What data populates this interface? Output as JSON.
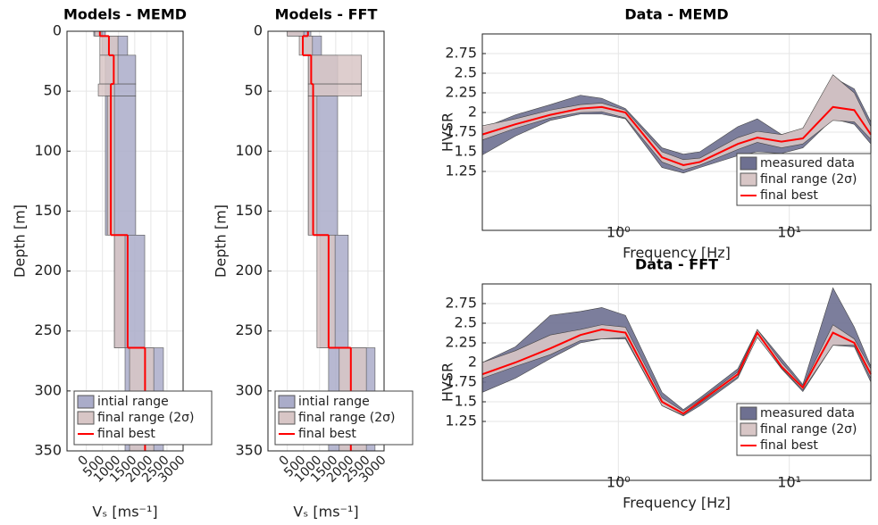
{
  "chart_data": [
    {
      "type": "profile",
      "title": "Models - MEMD",
      "xlabel": "Vₛ [ms⁻¹]",
      "ylabel": "Depth [m]",
      "xlim": [
        -600,
        3000
      ],
      "xticks": [
        0,
        500,
        1000,
        1500,
        2000,
        2500,
        3000
      ],
      "ylim": [
        0,
        350
      ],
      "yticks": [
        0,
        50,
        100,
        150,
        200,
        250,
        300,
        350
      ],
      "y_reversed": true,
      "grid": true,
      "depth_top": [
        0,
        4,
        20,
        44,
        54,
        170,
        264
      ],
      "depth_bottom": [
        4,
        20,
        44,
        54,
        170,
        264,
        350
      ],
      "series": [
        {
          "name": "intial range",
          "color": "#aaacc9",
          "lower": [
            230,
            500,
            590,
            590,
            590,
            870,
            1200
          ],
          "upper": [
            590,
            1280,
            1530,
            1530,
            1530,
            1810,
            2390
          ]
        },
        {
          "name": "final range (2σ)",
          "color": "#d8c6c6",
          "lower": [
            260,
            420,
            420,
            370,
            650,
            870,
            1340
          ],
          "upper": [
            480,
            980,
            980,
            870,
            870,
            1200,
            2090
          ]
        },
        {
          "name": "final best",
          "color": "#ff0000",
          "values": [
            420,
            700,
            850,
            760,
            760,
            1280,
            1820
          ]
        }
      ],
      "legend": "lower-left"
    },
    {
      "type": "profile",
      "title": "Models - FFT",
      "xlabel": "Vₛ [ms⁻¹]",
      "ylabel": "Depth [m]",
      "xlim": [
        -600,
        3000
      ],
      "xticks": [
        0,
        500,
        1000,
        1500,
        2000,
        2500,
        3000
      ],
      "ylim": [
        0,
        350
      ],
      "yticks": [
        0,
        50,
        100,
        150,
        200,
        250,
        300,
        350
      ],
      "y_reversed": true,
      "grid": true,
      "depth_top": [
        0,
        4,
        20,
        44,
        54,
        170,
        264
      ],
      "depth_bottom": [
        4,
        20,
        44,
        54,
        170,
        264,
        350
      ],
      "series": [
        {
          "name": "intial range",
          "color": "#aaacc9",
          "lower": [
            0,
            510,
            650,
            650,
            650,
            1010,
            1280
          ],
          "upper": [
            730,
            1060,
            1560,
            1560,
            1560,
            1890,
            2720
          ]
        },
        {
          "name": "final range (2σ)",
          "color": "#d8c6c6",
          "lower": [
            0,
            370,
            650,
            650,
            650,
            920,
            1610
          ],
          "upper": [
            510,
            780,
            2300,
            2300,
            920,
            1480,
            2450
          ]
        },
        {
          "name": "final best",
          "color": "#ff0000",
          "values": [
            640,
            480,
            740,
            800,
            800,
            1280,
            1970
          ]
        }
      ],
      "legend": "lower-left"
    },
    {
      "type": "hvsr",
      "title": "Data - MEMD",
      "xlabel": "Frequency [Hz]",
      "ylabel": "HVSR",
      "xscale": "log",
      "xlim": [
        0.16,
        30
      ],
      "xticks": [
        {
          "value": 1,
          "label": "10⁰"
        },
        {
          "value": 10,
          "label": "10¹"
        }
      ],
      "ylim": [
        0.5,
        3.0
      ],
      "yticks": [
        1.25,
        1.5,
        1.75,
        2,
        2.25,
        2.5,
        2.75
      ],
      "grid": true,
      "x": [
        0.16,
        0.25,
        0.4,
        0.6,
        0.8,
        1.1,
        1.8,
        2.4,
        3,
        5,
        6.5,
        9,
        12,
        18,
        24,
        30
      ],
      "series": [
        {
          "name": "measured data",
          "color": "#6e7091",
          "lower": [
            1.46,
            1.7,
            1.9,
            1.98,
            1.98,
            1.92,
            1.3,
            1.23,
            1.3,
            1.45,
            1.5,
            1.48,
            1.55,
            1.92,
            1.85,
            1.6
          ],
          "upper": [
            1.8,
            1.97,
            2.1,
            2.22,
            2.18,
            2.05,
            1.55,
            1.47,
            1.5,
            1.82,
            1.92,
            1.72,
            1.78,
            2.45,
            2.3,
            1.88
          ]
        },
        {
          "name": "final range (2σ)",
          "color": "#d8c6c6",
          "lower": [
            1.65,
            1.8,
            1.93,
            2.0,
            2.01,
            1.93,
            1.37,
            1.27,
            1.33,
            1.53,
            1.62,
            1.55,
            1.6,
            1.9,
            1.88,
            1.66
          ],
          "upper": [
            1.83,
            1.92,
            2.03,
            2.1,
            2.12,
            2.03,
            1.5,
            1.4,
            1.42,
            1.68,
            1.76,
            1.72,
            1.8,
            2.48,
            2.25,
            1.82
          ]
        },
        {
          "name": "final best",
          "color": "#ff0000",
          "values": [
            1.72,
            1.85,
            1.97,
            2.05,
            2.07,
            2.0,
            1.43,
            1.33,
            1.37,
            1.6,
            1.68,
            1.63,
            1.67,
            2.07,
            2.03,
            1.72
          ]
        }
      ],
      "legend": "lower-right"
    },
    {
      "type": "hvsr",
      "title": "Data - FFT",
      "xlabel": "Frequency [Hz]",
      "ylabel": "HVSR",
      "xscale": "log",
      "xlim": [
        0.16,
        30
      ],
      "xticks": [
        {
          "value": 1,
          "label": "10⁰"
        },
        {
          "value": 10,
          "label": "10¹"
        }
      ],
      "ylim": [
        0.5,
        3.0
      ],
      "yticks": [
        1.25,
        1.5,
        1.75,
        2,
        2.25,
        2.5,
        2.75
      ],
      "grid": true,
      "x": [
        0.16,
        0.25,
        0.4,
        0.6,
        0.8,
        1.1,
        1.8,
        2.4,
        3,
        5,
        6.5,
        9,
        12,
        18,
        24,
        30
      ],
      "series": [
        {
          "name": "measured data",
          "color": "#6e7091",
          "lower": [
            1.62,
            1.8,
            2.05,
            2.25,
            2.3,
            2.3,
            1.45,
            1.32,
            1.45,
            1.8,
            2.33,
            1.92,
            1.63,
            2.22,
            2.2,
            1.75
          ],
          "upper": [
            2.0,
            2.2,
            2.6,
            2.65,
            2.7,
            2.6,
            1.62,
            1.4,
            1.55,
            1.92,
            2.42,
            2.05,
            1.72,
            2.95,
            2.45,
            1.95
          ]
        },
        {
          "name": "final range (2σ)",
          "color": "#d8c6c6",
          "lower": [
            1.8,
            1.95,
            2.1,
            2.28,
            2.3,
            2.32,
            1.45,
            1.33,
            1.48,
            1.82,
            2.32,
            1.93,
            1.65,
            2.22,
            2.22,
            1.8
          ],
          "upper": [
            2.0,
            2.15,
            2.35,
            2.42,
            2.48,
            2.45,
            1.55,
            1.38,
            1.52,
            1.88,
            2.42,
            2.0,
            1.7,
            2.48,
            2.3,
            1.92
          ]
        },
        {
          "name": "final best",
          "color": "#ff0000",
          "values": [
            1.85,
            2.0,
            2.18,
            2.35,
            2.42,
            2.38,
            1.5,
            1.35,
            1.5,
            1.85,
            2.38,
            1.95,
            1.68,
            2.38,
            2.25,
            1.85
          ]
        }
      ],
      "legend": "lower-right"
    }
  ]
}
